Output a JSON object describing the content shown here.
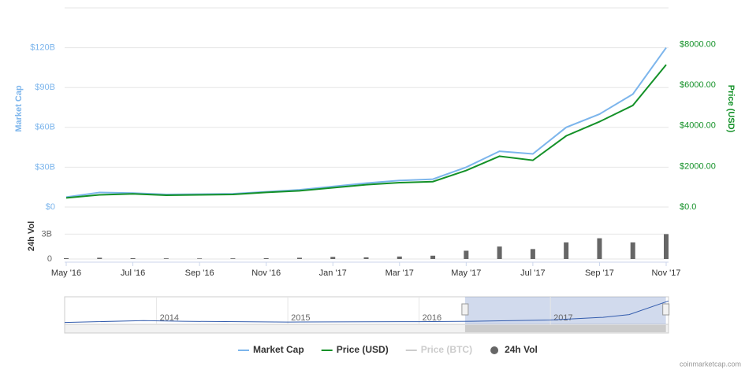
{
  "chart_data": {
    "type": "line",
    "x": [
      "2016-05",
      "2016-06",
      "2016-07",
      "2016-08",
      "2016-09",
      "2016-10",
      "2016-11",
      "2016-12",
      "2017-01",
      "2017-02",
      "2017-03",
      "2017-04",
      "2017-05",
      "2017-06",
      "2017-07",
      "2017-08",
      "2017-09",
      "2017-10",
      "2017-11"
    ],
    "xticks": [
      {
        "value": "2016-05",
        "label": "May '16"
      },
      {
        "value": "2016-07",
        "label": "Jul '16"
      },
      {
        "value": "2016-09",
        "label": "Sep '16"
      },
      {
        "value": "2016-11",
        "label": "Nov '16"
      },
      {
        "value": "2017-01",
        "label": "Jan '17"
      },
      {
        "value": "2017-03",
        "label": "Mar '17"
      },
      {
        "value": "2017-05",
        "label": "May '17"
      },
      {
        "value": "2017-07",
        "label": "Jul '17"
      },
      {
        "value": "2017-09",
        "label": "Sep '17"
      },
      {
        "value": "2017-11",
        "label": "Nov '17"
      }
    ],
    "ylabel": "Market Cap",
    "ylim": [
      0,
      150000000000
    ],
    "yticks": [
      {
        "value": 0,
        "label": "$0"
      },
      {
        "value": 30000000000,
        "label": "$30B"
      },
      {
        "value": 60000000000,
        "label": "$60B"
      },
      {
        "value": 90000000000,
        "label": "$90B"
      },
      {
        "value": 120000000000,
        "label": "$120B"
      }
    ],
    "y2label": "Price (USD)",
    "y2lim": [
      0,
      9800
    ],
    "y2ticks": [
      {
        "value": 0,
        "label": "$0.0"
      },
      {
        "value": 2000,
        "label": "$2000.00"
      },
      {
        "value": 4000,
        "label": "$4000.00"
      },
      {
        "value": 6000,
        "label": "$6000.00"
      },
      {
        "value": 8000,
        "label": "$8000.00"
      }
    ],
    "grid": true,
    "series": [
      {
        "name": "Market Cap",
        "color": "#7cb5ec",
        "axis": "y",
        "values": [
          7500000000,
          11000000000,
          10500000000,
          9500000000,
          9700000000,
          10000000000,
          11500000000,
          13000000000,
          15500000000,
          18000000000,
          20000000000,
          21000000000,
          30000000000,
          42000000000,
          40000000000,
          60000000000,
          70000000000,
          85000000000,
          120000000000
        ]
      },
      {
        "name": "Price (USD)",
        "color": "#149128",
        "axis": "y2",
        "values": [
          450,
          600,
          650,
          580,
          600,
          620,
          720,
          800,
          950,
          1100,
          1200,
          1250,
          1800,
          2500,
          2300,
          3500,
          4200,
          5000,
          7000
        ]
      },
      {
        "name": "Price (BTC)",
        "color": "#cccccc",
        "visible": false
      },
      {
        "name": "24h Vol",
        "color": "#666666",
        "axis": "vol",
        "values": [
          100000000,
          150000000,
          100000000,
          80000000,
          70000000,
          80000000,
          100000000,
          150000000,
          250000000,
          200000000,
          300000000,
          400000000,
          1000000000,
          1500000000,
          1200000000,
          2000000000,
          2500000000,
          2000000000,
          3000000000
        ]
      }
    ],
    "vol_label": "24h Vol",
    "vol_lim": [
      0,
      5600000000
    ],
    "vol_ticks": [
      0,
      {
        "value": 3000000000,
        "label": "3B"
      }
    ],
    "navigator": {
      "x": [
        2013.3,
        2013.9,
        2014.2,
        2015.0,
        2016.0,
        2016.4,
        2017.0,
        2017.4,
        2017.6,
        2017.9
      ],
      "values": [
        1500000000,
        12000000000,
        8000000000,
        4000000000,
        6000000000,
        8000000000,
        15000000000,
        30000000000,
        45000000000,
        120000000000
      ],
      "xlim": [
        2013.3,
        2017.9
      ],
      "ylim": [
        0,
        130000000000
      ],
      "xticks": [
        2014,
        2015,
        2016,
        2017
      ],
      "selection": [
        2016.35,
        2017.88
      ]
    },
    "credit": "coinmarketcap.com"
  }
}
